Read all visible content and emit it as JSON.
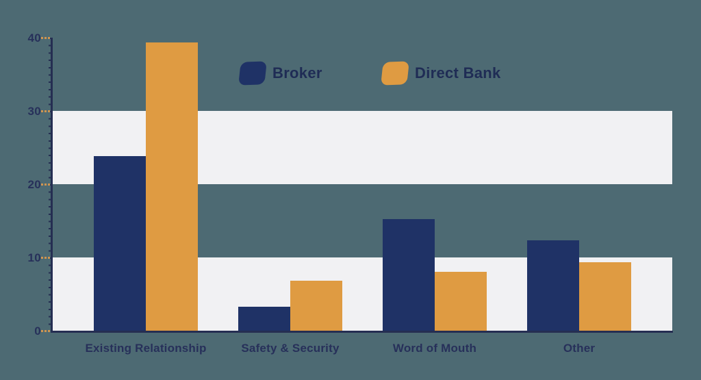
{
  "chart_data": {
    "type": "bar",
    "title": "",
    "xlabel": "",
    "ylabel": "",
    "categories": [
      "Existing Relationship",
      "Safety & Security",
      "Word of Mouth",
      "Other"
    ],
    "series": [
      {
        "name": "Broker",
        "color": "#1f3266",
        "values": [
          23.8,
          3.3,
          15.2,
          12.3
        ]
      },
      {
        "name": "Direct Bank",
        "color": "#df9b42",
        "values": [
          39.3,
          6.8,
          8.0,
          9.3
        ]
      }
    ],
    "y_ticks": [
      0,
      10,
      20,
      30,
      40
    ],
    "ylim": [
      0,
      40
    ],
    "highlight_bands": [
      [
        0,
        10
      ],
      [
        20,
        30
      ]
    ],
    "grid": "alternating horizontal highlight bands",
    "legend_position": "top-center"
  },
  "legend": {
    "items": [
      {
        "label": "Broker"
      },
      {
        "label": "Direct Bank"
      }
    ]
  },
  "colors": {
    "background": "#4d6a73",
    "band": "#f1f1f3",
    "axis": "#252e52",
    "tick_dash": "#cf9550",
    "label_text": "#27305a",
    "legend_text": "#1f2c55"
  }
}
